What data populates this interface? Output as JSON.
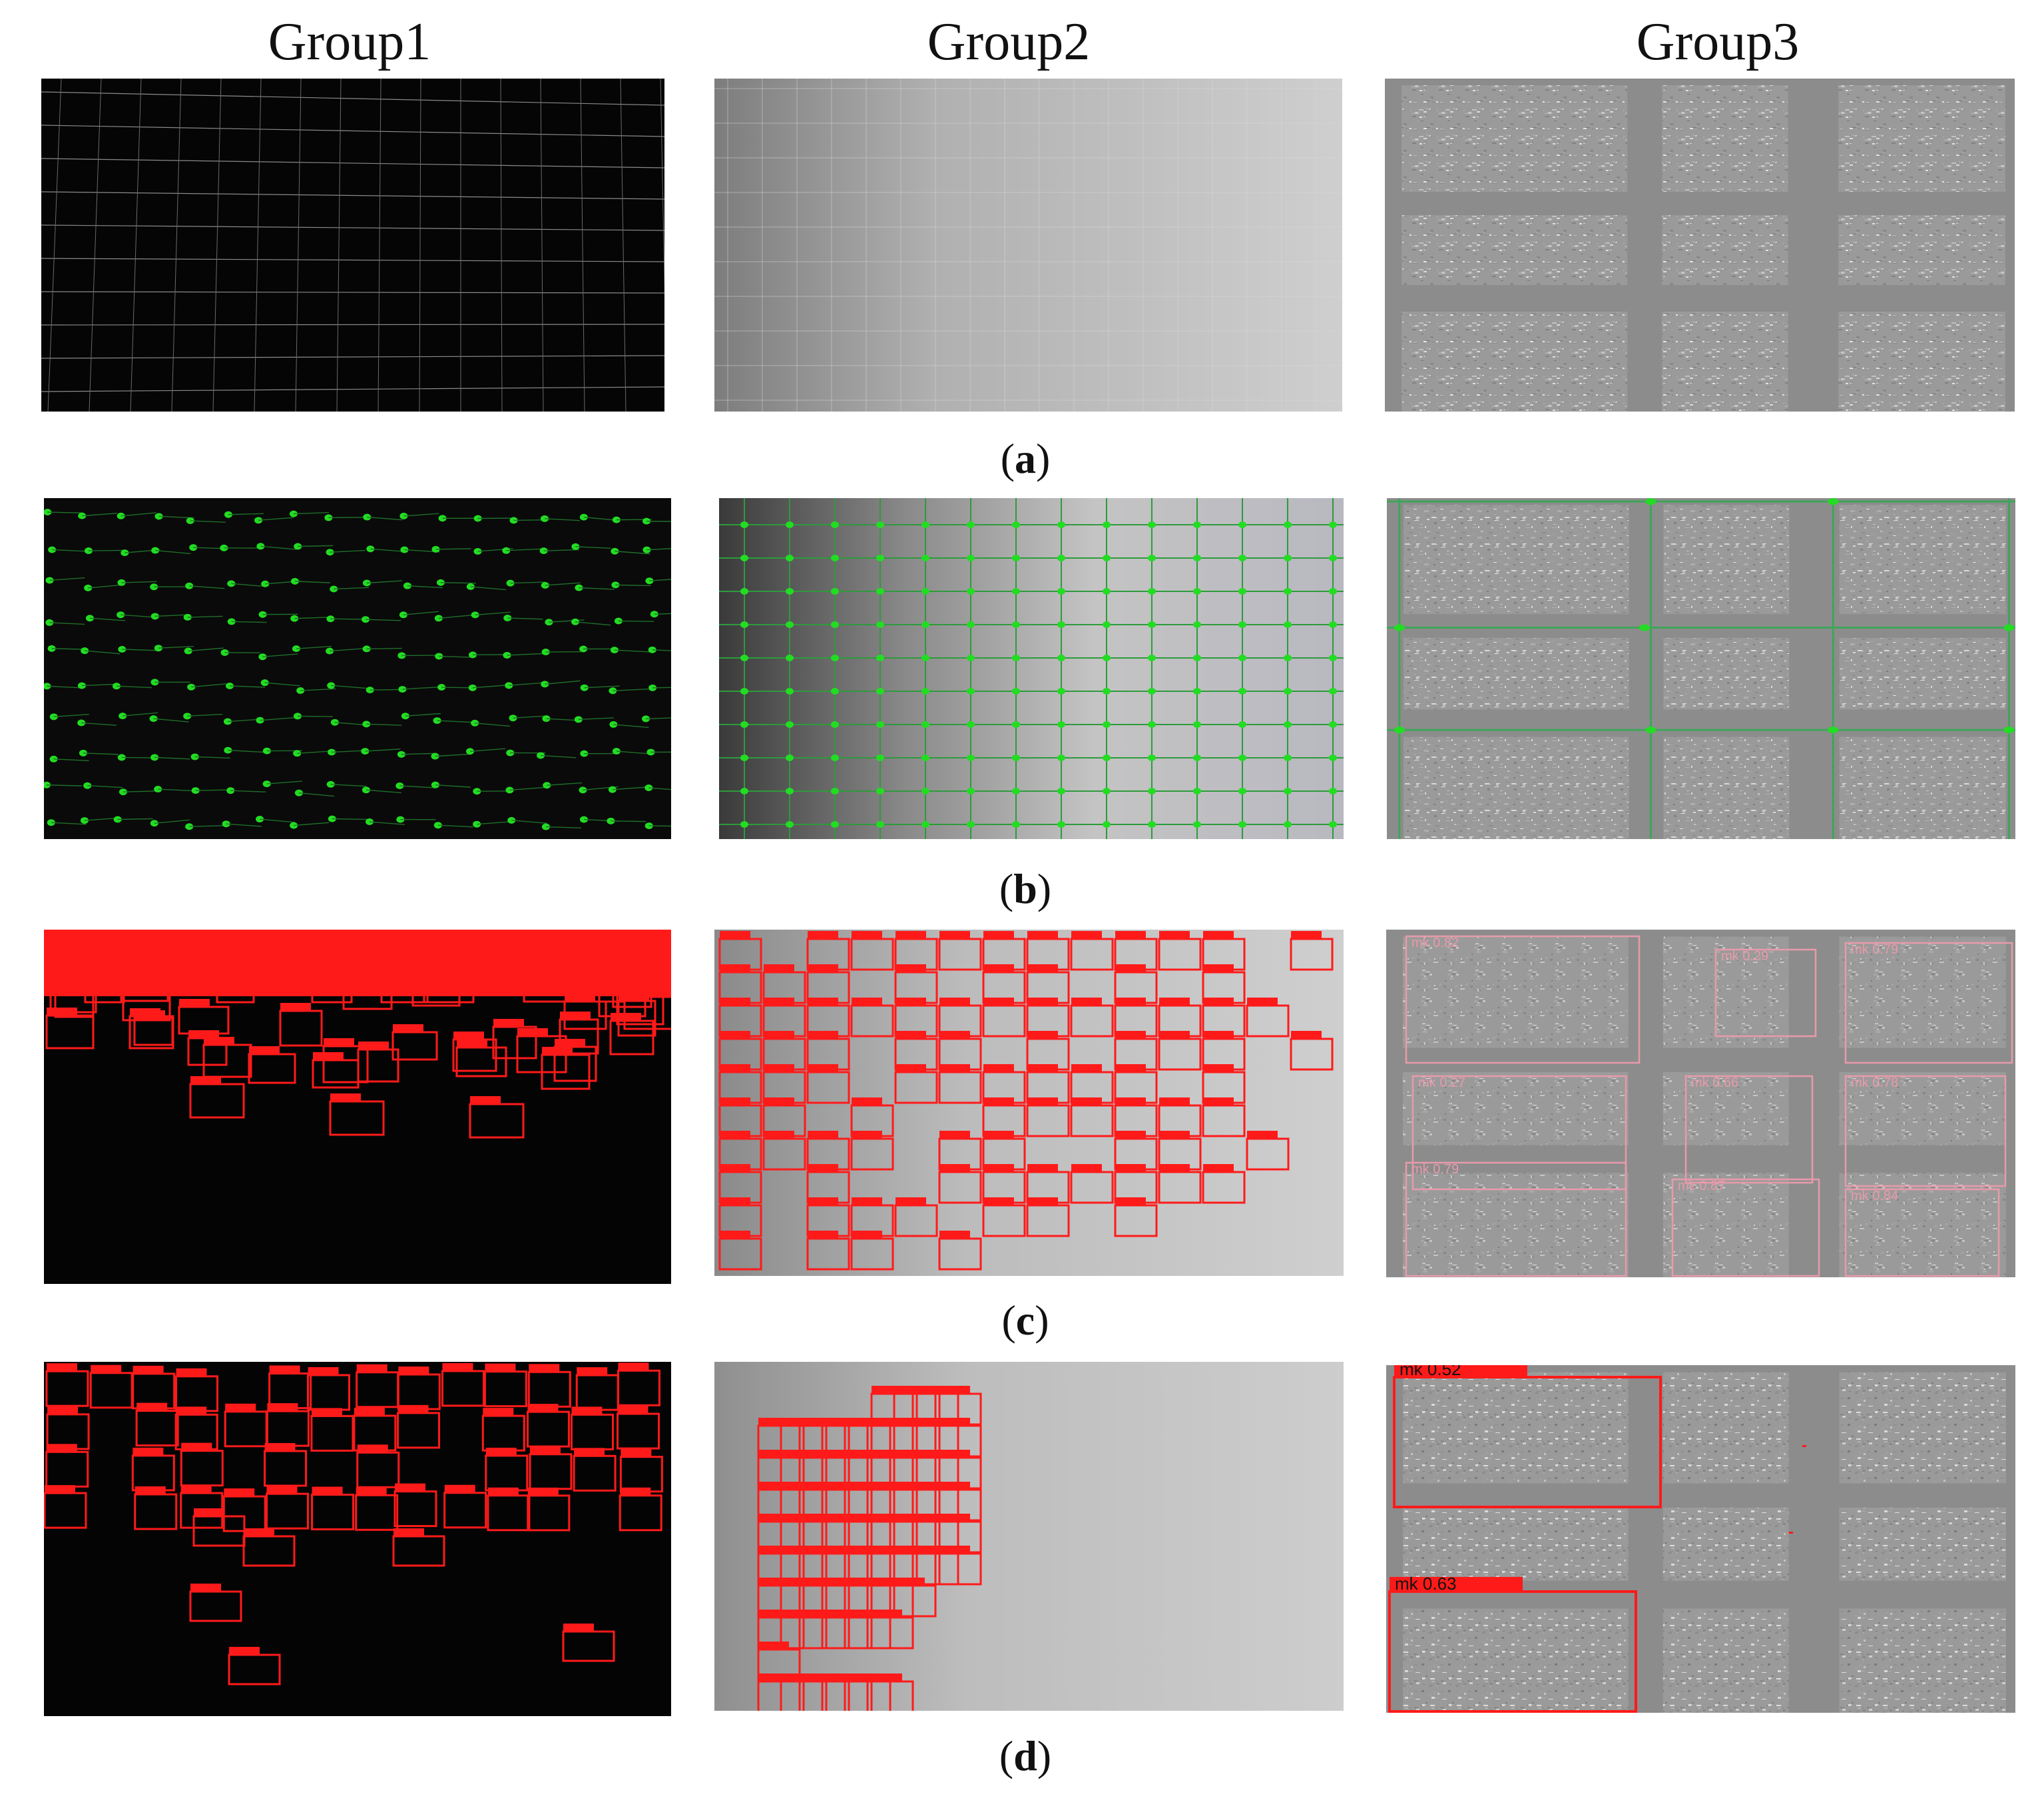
{
  "headers": [
    "Group1",
    "Group2",
    "Group3"
  ],
  "captions": [
    "a",
    "b",
    "c",
    "d"
  ],
  "detections": {
    "row_c_group3": [
      "mk 0.82",
      "mk 0.29",
      "mk 0.79",
      "mk 0.27",
      "mk 0.66",
      "mk 0.78",
      "mk 0.79",
      "mk 0.87",
      "mk 0.84"
    ],
    "row_d_group3": [
      "mk  0.52",
      "mk  0.63"
    ]
  },
  "colors": {
    "grid_dot": "#22dd22",
    "box_red": "#ff1a1a",
    "box_pink": "#e89aaa"
  }
}
